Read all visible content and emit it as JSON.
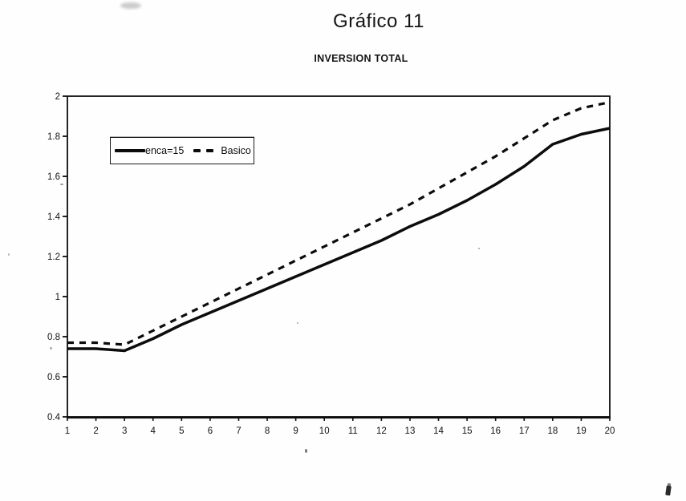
{
  "page": {
    "title": "Gráfico 11",
    "subtitle": "INVERSION TOTAL"
  },
  "chart_data": {
    "type": "line",
    "title": "Gráfico 11",
    "subtitle": "INVERSION TOTAL",
    "x": [
      1,
      2,
      3,
      4,
      5,
      6,
      7,
      8,
      9,
      10,
      11,
      12,
      13,
      14,
      15,
      16,
      17,
      18,
      19,
      20
    ],
    "series": [
      {
        "name": "enca=15",
        "style": "solid",
        "values": [
          0.74,
          0.74,
          0.73,
          0.79,
          0.86,
          0.92,
          0.98,
          1.04,
          1.1,
          1.16,
          1.22,
          1.28,
          1.35,
          1.41,
          1.48,
          1.56,
          1.65,
          1.76,
          1.81,
          1.84
        ]
      },
      {
        "name": "Basico",
        "style": "dashed",
        "values": [
          0.77,
          0.77,
          0.76,
          0.83,
          0.9,
          0.97,
          1.04,
          1.11,
          1.18,
          1.25,
          1.32,
          1.39,
          1.46,
          1.54,
          1.62,
          1.7,
          1.79,
          1.88,
          1.94,
          1.97
        ]
      }
    ],
    "xlabel": "",
    "ylabel": "",
    "xlim": [
      1,
      20
    ],
    "ylim": [
      0.4,
      2
    ],
    "xticks": [
      "1",
      "2",
      "3",
      "4",
      "5",
      "6",
      "7",
      "8",
      "9",
      "10",
      "11",
      "12",
      "13",
      "14",
      "15",
      "16",
      "17",
      "18",
      "19",
      "20"
    ],
    "yticks": [
      0.4,
      0.6,
      0.8,
      1,
      1.2,
      1.4,
      1.6,
      1.8,
      2
    ],
    "ytick_labels": [
      "0.4",
      "0.6",
      "0.8",
      "1",
      "1.2",
      "1.4",
      "1.6",
      "1.8",
      "2"
    ],
    "grid": false,
    "legend_position": "inside-top-left",
    "line_color": "#0c0c0c",
    "background_color": "#fefefe"
  }
}
